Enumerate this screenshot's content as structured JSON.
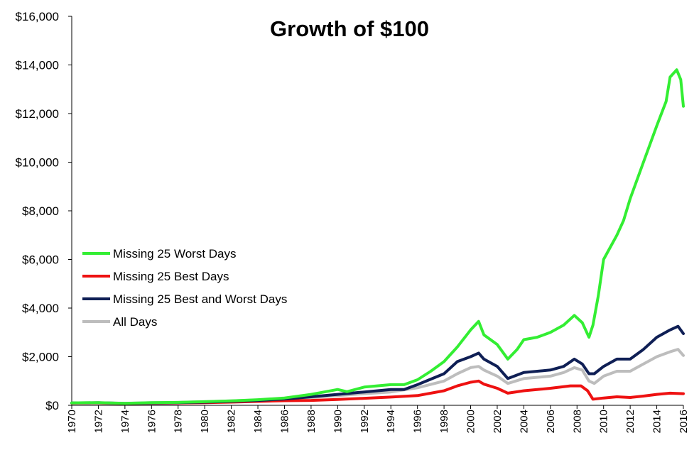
{
  "chart_data": {
    "type": "line",
    "title": "Growth of $100",
    "xlabel": "",
    "ylabel": "",
    "xlim": [
      1970,
      2016
    ],
    "ylim": [
      0,
      16000
    ],
    "x_ticks": [
      "1970",
      "1972",
      "1974",
      "1976",
      "1978",
      "1980",
      "1982",
      "1984",
      "1986",
      "1988",
      "1990",
      "1992",
      "1994",
      "1996",
      "1998",
      "2000",
      "2002",
      "2004",
      "2006",
      "2008",
      "2010",
      "2012",
      "2014",
      "2016"
    ],
    "y_ticks": [
      "$0",
      "$2,000",
      "$4,000",
      "$6,000",
      "$8,000",
      "$10,000",
      "$12,000",
      "$14,000",
      "$16,000"
    ],
    "grid": false,
    "legend_position": "left-middle",
    "series": [
      {
        "name": "Missing 25 Worst Days",
        "color": "#33ee33",
        "x": [
          1970,
          1972,
          1974,
          1976,
          1978,
          1980,
          1982,
          1984,
          1986,
          1988,
          1989,
          1990,
          1990.7,
          1992,
          1994,
          1995,
          1996,
          1997,
          1998,
          1999,
          2000,
          2000.6,
          2001,
          2002,
          2002.8,
          2003.5,
          2004,
          2005,
          2006,
          2007,
          2007.8,
          2008.4,
          2008.9,
          2009.2,
          2009.6,
          2010,
          2011,
          2011.5,
          2012,
          2013,
          2014,
          2014.7,
          2015,
          2015.5,
          2015.8,
          2016
        ],
        "values": [
          100,
          110,
          80,
          110,
          120,
          150,
          180,
          230,
          300,
          450,
          550,
          650,
          560,
          750,
          850,
          850,
          1050,
          1400,
          1800,
          2400,
          3100,
          3450,
          2900,
          2500,
          1900,
          2300,
          2700,
          2800,
          3000,
          3300,
          3700,
          3400,
          2800,
          3300,
          4500,
          6000,
          7000,
          7600,
          8500,
          10000,
          11500,
          12500,
          13500,
          13800,
          13400,
          12300
        ]
      },
      {
        "name": "Missing 25 Best Days",
        "color": "#ee1111",
        "x": [
          1970,
          1972,
          1974,
          1976,
          1978,
          1980,
          1982,
          1984,
          1986,
          1988,
          1990,
          1992,
          1994,
          1996,
          1998,
          1999,
          2000,
          2000.6,
          2001,
          2002,
          2002.8,
          2004,
          2006,
          2007.5,
          2008.3,
          2008.8,
          2009.2,
          2010,
          2011,
          2012,
          2013,
          2014,
          2015,
          2016
        ],
        "values": [
          90,
          95,
          70,
          85,
          95,
          110,
          130,
          160,
          190,
          200,
          240,
          290,
          340,
          400,
          600,
          800,
          950,
          1000,
          870,
          700,
          500,
          600,
          700,
          800,
          800,
          600,
          250,
          300,
          350,
          320,
          380,
          450,
          500,
          480
        ]
      },
      {
        "name": "Missing 25 Best and Worst Days",
        "color": "#0f1f55",
        "x": [
          1970,
          1972,
          1974,
          1976,
          1978,
          1980,
          1982,
          1984,
          1986,
          1988,
          1990,
          1992,
          1994,
          1995,
          1996,
          1998,
          1999,
          2000,
          2000.6,
          2001,
          2002,
          2002.8,
          2004,
          2006,
          2007,
          2007.8,
          2008.4,
          2008.9,
          2009.3,
          2010,
          2011,
          2012,
          2013,
          2014,
          2015,
          2015.6,
          2016
        ],
        "values": [
          100,
          105,
          75,
          95,
          110,
          130,
          160,
          200,
          260,
          350,
          450,
          550,
          650,
          650,
          850,
          1300,
          1800,
          2000,
          2150,
          1900,
          1600,
          1100,
          1350,
          1450,
          1600,
          1900,
          1700,
          1300,
          1300,
          1600,
          1900,
          1900,
          2300,
          2800,
          3100,
          3250,
          2950
        ]
      },
      {
        "name": "All Days",
        "color": "#bdbdbd",
        "x": [
          1970,
          1972,
          1974,
          1976,
          1978,
          1980,
          1982,
          1984,
          1986,
          1988,
          1990,
          1992,
          1994,
          1996,
          1998,
          1999,
          2000,
          2000.6,
          2001,
          2002,
          2002.8,
          2004,
          2006,
          2007,
          2007.8,
          2008.4,
          2008.9,
          2009.3,
          2010,
          2011,
          2012,
          2013,
          2014,
          2015,
          2015.6,
          2016
        ],
        "values": [
          100,
          110,
          85,
          110,
          120,
          150,
          180,
          220,
          280,
          320,
          400,
          480,
          550,
          720,
          1000,
          1300,
          1550,
          1600,
          1450,
          1200,
          900,
          1100,
          1200,
          1350,
          1550,
          1450,
          1000,
          900,
          1200,
          1400,
          1400,
          1700,
          2000,
          2200,
          2300,
          2050
        ]
      }
    ]
  }
}
